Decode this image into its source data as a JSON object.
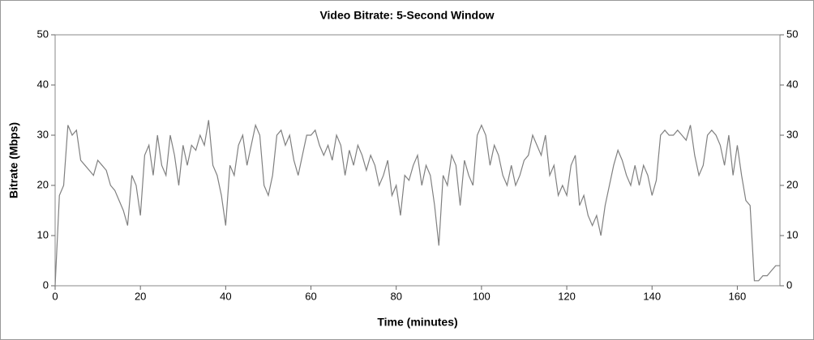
{
  "chart_data": {
    "type": "line",
    "title": "Video Bitrate: 5-Second Window",
    "x_label": "Time (minutes)",
    "y_label": "Bitrate (Mbps)",
    "xlim": [
      0,
      170
    ],
    "xticks": [
      0,
      20,
      40,
      60,
      80,
      100,
      120,
      140,
      160
    ],
    "ylim": [
      0,
      50
    ],
    "yticks": [
      0,
      10,
      20,
      30,
      40,
      50
    ],
    "y2lim": [
      0,
      50
    ],
    "y2ticks": [
      0,
      10,
      20,
      30,
      40,
      50
    ],
    "x": [
      0,
      1,
      2,
      3,
      4,
      5,
      6,
      7,
      8,
      9,
      10,
      11,
      12,
      13,
      14,
      15,
      16,
      17,
      18,
      19,
      20,
      21,
      22,
      23,
      24,
      25,
      26,
      27,
      28,
      29,
      30,
      31,
      32,
      33,
      34,
      35,
      36,
      37,
      38,
      39,
      40,
      41,
      42,
      43,
      44,
      45,
      46,
      47,
      48,
      49,
      50,
      51,
      52,
      53,
      54,
      55,
      56,
      57,
      58,
      59,
      60,
      61,
      62,
      63,
      64,
      65,
      66,
      67,
      68,
      69,
      70,
      71,
      72,
      73,
      74,
      75,
      76,
      77,
      78,
      79,
      80,
      81,
      82,
      83,
      84,
      85,
      86,
      87,
      88,
      89,
      90,
      91,
      92,
      93,
      94,
      95,
      96,
      97,
      98,
      99,
      100,
      101,
      102,
      103,
      104,
      105,
      106,
      107,
      108,
      109,
      110,
      111,
      112,
      113,
      114,
      115,
      116,
      117,
      118,
      119,
      120,
      121,
      122,
      123,
      124,
      125,
      126,
      127,
      128,
      129,
      130,
      131,
      132,
      133,
      134,
      135,
      136,
      137,
      138,
      139,
      140,
      141,
      142,
      143,
      144,
      145,
      146,
      147,
      148,
      149,
      150,
      151,
      152,
      153,
      154,
      155,
      156,
      157,
      158,
      159,
      160,
      161,
      162,
      163,
      164,
      165,
      166,
      167,
      168,
      169,
      170
    ],
    "series": [
      {
        "name": "Video Bitrate",
        "color": "#808080",
        "values": [
          0,
          18,
          20,
          32,
          30,
          31,
          25,
          24,
          23,
          22,
          25,
          24,
          23,
          20,
          19,
          17,
          15,
          12,
          22,
          20,
          14,
          26,
          28,
          22,
          30,
          24,
          22,
          30,
          26,
          20,
          28,
          24,
          28,
          27,
          30,
          28,
          33,
          24,
          22,
          18,
          12,
          24,
          22,
          28,
          30,
          24,
          28,
          32,
          30,
          20,
          18,
          22,
          30,
          31,
          28,
          30,
          25,
          22,
          26,
          30,
          30,
          31,
          28,
          26,
          28,
          25,
          30,
          28,
          22,
          27,
          24,
          28,
          26,
          23,
          26,
          24,
          20,
          22,
          25,
          18,
          20,
          14,
          22,
          21,
          24,
          26,
          20,
          24,
          22,
          16,
          8,
          22,
          20,
          26,
          24,
          16,
          25,
          22,
          20,
          30,
          32,
          30,
          24,
          28,
          26,
          22,
          20,
          24,
          20,
          22,
          25,
          26,
          30,
          28,
          26,
          30,
          22,
          24,
          18,
          20,
          18,
          24,
          26,
          16,
          18,
          14,
          12,
          14,
          10,
          16,
          20,
          24,
          27,
          25,
          22,
          20,
          24,
          20,
          24,
          22,
          18,
          21,
          30,
          31,
          30,
          30,
          31,
          30,
          29,
          32,
          26,
          22,
          24,
          30,
          31,
          30,
          28,
          24,
          30,
          22,
          28,
          22,
          17,
          16,
          1,
          1,
          2,
          2,
          3,
          4,
          4
        ]
      }
    ]
  }
}
